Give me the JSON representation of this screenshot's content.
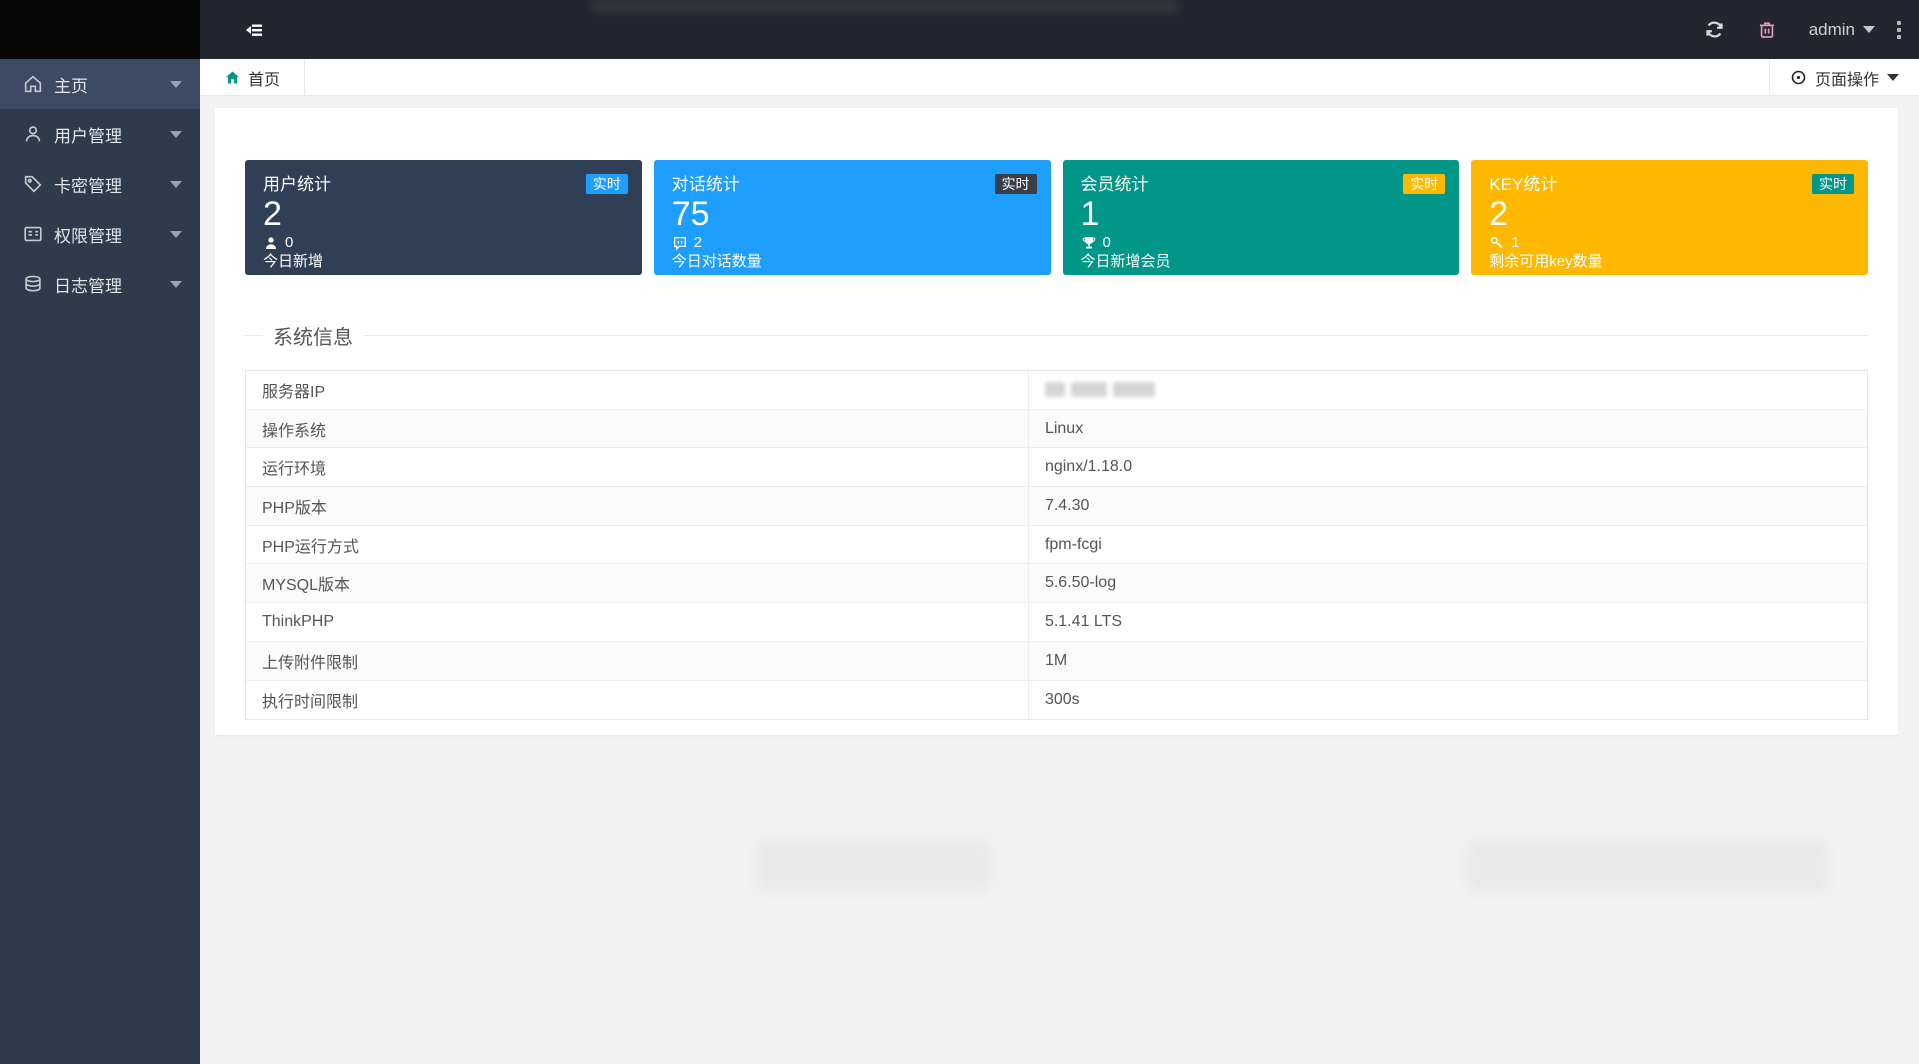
{
  "header": {
    "username": "admin",
    "colors": {
      "bar": "#23262e",
      "logo": "#070707"
    }
  },
  "sidebar": {
    "colors": {
      "bg": "#2f3a4d",
      "active": "#3c4a63"
    },
    "items": [
      {
        "label": "主页",
        "icon": "home-icon",
        "active": true
      },
      {
        "label": "用户管理",
        "icon": "user-icon",
        "active": false
      },
      {
        "label": "卡密管理",
        "icon": "tag-icon",
        "active": false
      },
      {
        "label": "权限管理",
        "icon": "permission-icon",
        "active": false
      },
      {
        "label": "日志管理",
        "icon": "logs-icon",
        "active": false
      }
    ]
  },
  "breadcrumb": {
    "home_label": "首页",
    "page_actions_label": "页面操作",
    "home_icon_color": "#009688"
  },
  "stats": [
    {
      "title": "用户统计",
      "value": "2",
      "sub_value": "0",
      "caption": "今日新增",
      "badge": "实时",
      "bg": "#2f4056",
      "badge_bg": "#1e9fff",
      "icon": "user-icon"
    },
    {
      "title": "对话统计",
      "value": "75",
      "sub_value": "2",
      "caption": "今日对话数量",
      "badge": "实时",
      "bg": "#1e9fff",
      "badge_bg": "#393d49",
      "icon": "chat-icon"
    },
    {
      "title": "会员统计",
      "value": "1",
      "sub_value": "0",
      "caption": "今日新增会员",
      "badge": "实时",
      "bg": "#009688",
      "badge_bg": "#ffb800",
      "icon": "trophy-icon"
    },
    {
      "title": "KEY统计",
      "value": "2",
      "sub_value": "1",
      "caption": "剩余可用key数量",
      "badge": "实时",
      "bg": "#ffb800",
      "badge_bg": "#009688",
      "icon": "key-icon"
    }
  ],
  "system_info": {
    "title": "系统信息",
    "rows": [
      {
        "label": "服务器IP",
        "value": "",
        "masked": true
      },
      {
        "label": "操作系统",
        "value": "Linux",
        "masked": false
      },
      {
        "label": "运行环境",
        "value": "nginx/1.18.0",
        "masked": false
      },
      {
        "label": "PHP版本",
        "value": "7.4.30",
        "masked": false
      },
      {
        "label": "PHP运行方式",
        "value": "fpm-fcgi",
        "masked": false
      },
      {
        "label": "MYSQL版本",
        "value": "5.6.50-log",
        "masked": false
      },
      {
        "label": "ThinkPHP",
        "value": "5.1.41 LTS",
        "masked": false
      },
      {
        "label": "上传附件限制",
        "value": "1M",
        "masked": false
      },
      {
        "label": "执行时间限制",
        "value": "300s",
        "masked": false
      }
    ]
  }
}
